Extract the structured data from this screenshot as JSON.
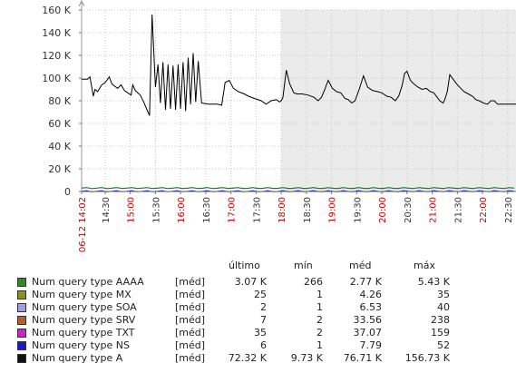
{
  "chart_data": {
    "type": "line",
    "ylim": [
      0,
      160000
    ],
    "y_ticks": [
      "0",
      "20 K",
      "40 K",
      "60 K",
      "80 K",
      "100 K",
      "120 K",
      "140 K",
      "160 K"
    ],
    "x_ticks": [
      {
        "label": "06-12 14:02",
        "red": true
      },
      {
        "label": "14:30",
        "red": false
      },
      {
        "label": "15:00",
        "red": true
      },
      {
        "label": "15:30",
        "red": false
      },
      {
        "label": "16:00",
        "red": true
      },
      {
        "label": "16:30",
        "red": false
      },
      {
        "label": "17:00",
        "red": true
      },
      {
        "label": "17:30",
        "red": false
      },
      {
        "label": "18:00",
        "red": true
      },
      {
        "label": "18:30",
        "red": false
      },
      {
        "label": "19:00",
        "red": true
      },
      {
        "label": "19:30",
        "red": false
      },
      {
        "label": "20:00",
        "red": true
      },
      {
        "label": "20:30",
        "red": false
      },
      {
        "label": "21:00",
        "red": true
      },
      {
        "label": "21:30",
        "red": false
      },
      {
        "label": "22:00",
        "red": true
      },
      {
        "label": "22:30",
        "red": false
      }
    ],
    "x_range_minutes": [
      0,
      519
    ],
    "shaded_from_minutes": 238,
    "grid": true,
    "series_main": {
      "name": "Num query type A",
      "color": "#000000",
      "points": [
        [
          0,
          99000
        ],
        [
          7,
          99000
        ],
        [
          10,
          101000
        ],
        [
          14,
          84000
        ],
        [
          16,
          90000
        ],
        [
          19,
          88000
        ],
        [
          24,
          94000
        ],
        [
          28,
          96000
        ],
        [
          33,
          101000
        ],
        [
          36,
          95000
        ],
        [
          39,
          93000
        ],
        [
          43,
          91000
        ],
        [
          47,
          94000
        ],
        [
          51,
          89000
        ],
        [
          55,
          87000
        ],
        [
          59,
          85000
        ],
        [
          61,
          94000
        ],
        [
          64,
          89000
        ],
        [
          70,
          85000
        ],
        [
          74,
          79000
        ],
        [
          78,
          72000
        ],
        [
          81,
          67000
        ],
        [
          84,
          156000
        ],
        [
          88,
          92000
        ],
        [
          91,
          112000
        ],
        [
          94,
          78000
        ],
        [
          97,
          114000
        ],
        [
          100,
          72000
        ],
        [
          103,
          112000
        ],
        [
          106,
          73000
        ],
        [
          109,
          111000
        ],
        [
          112,
          72000
        ],
        [
          115,
          112000
        ],
        [
          118,
          73000
        ],
        [
          121,
          114000
        ],
        [
          124,
          71000
        ],
        [
          127,
          118000
        ],
        [
          130,
          77000
        ],
        [
          133,
          122000
        ],
        [
          136,
          79000
        ],
        [
          139,
          115000
        ],
        [
          143,
          78000
        ],
        [
          151,
          77000
        ],
        [
          162,
          77000
        ],
        [
          167,
          76000
        ],
        [
          171,
          96000
        ],
        [
          176,
          98000
        ],
        [
          181,
          91000
        ],
        [
          187,
          88000
        ],
        [
          194,
          86000
        ],
        [
          199,
          84000
        ],
        [
          206,
          82000
        ],
        [
          214,
          80000
        ],
        [
          220,
          77000
        ],
        [
          226,
          80000
        ],
        [
          232,
          81000
        ],
        [
          236,
          79000
        ],
        [
          238,
          80000
        ],
        [
          240,
          83000
        ],
        [
          244,
          107000
        ],
        [
          248,
          95000
        ],
        [
          253,
          87000
        ],
        [
          257,
          86000
        ],
        [
          263,
          86000
        ],
        [
          270,
          85000
        ],
        [
          277,
          83000
        ],
        [
          282,
          80000
        ],
        [
          286,
          83000
        ],
        [
          290,
          90000
        ],
        [
          294,
          98000
        ],
        [
          299,
          91000
        ],
        [
          304,
          88000
        ],
        [
          309,
          87000
        ],
        [
          314,
          82000
        ],
        [
          318,
          81000
        ],
        [
          322,
          78000
        ],
        [
          326,
          80000
        ],
        [
          331,
          90000
        ],
        [
          336,
          102000
        ],
        [
          341,
          92000
        ],
        [
          347,
          89000
        ],
        [
          353,
          88000
        ],
        [
          358,
          87000
        ],
        [
          364,
          84000
        ],
        [
          369,
          83000
        ],
        [
          374,
          80000
        ],
        [
          378,
          84000
        ],
        [
          382,
          93000
        ],
        [
          385,
          104000
        ],
        [
          388,
          106000
        ],
        [
          392,
          98000
        ],
        [
          396,
          95000
        ],
        [
          401,
          92000
        ],
        [
          406,
          90000
        ],
        [
          411,
          91000
        ],
        [
          416,
          88000
        ],
        [
          420,
          87000
        ],
        [
          424,
          83000
        ],
        [
          427,
          80000
        ],
        [
          431,
          78000
        ],
        [
          433,
          81000
        ],
        [
          436,
          88000
        ],
        [
          439,
          103000
        ],
        [
          443,
          99000
        ],
        [
          447,
          95000
        ],
        [
          452,
          91000
        ],
        [
          456,
          88000
        ],
        [
          461,
          86000
        ],
        [
          466,
          84000
        ],
        [
          470,
          81000
        ],
        [
          474,
          80000
        ],
        [
          479,
          78000
        ],
        [
          484,
          77000
        ],
        [
          488,
          80000
        ],
        [
          492,
          80000
        ],
        [
          496,
          77000
        ],
        [
          505,
          77000
        ],
        [
          519,
          77000
        ]
      ]
    },
    "series_minor": [
      {
        "name": "Num query type AAAA",
        "color": "#1a7f1a",
        "value": 3000
      },
      {
        "name": "Num query type NS",
        "color": "#0000cc",
        "value": 200
      }
    ],
    "legend": {
      "header": {
        "last": "último",
        "min": "mín",
        "avg": "méd",
        "max": "máx"
      },
      "rows": [
        {
          "color": "#2e8b22",
          "name": "Num query type AAAA",
          "type": "[méd]",
          "last": "3.07 K",
          "min": "266",
          "avg": "2.77 K",
          "max": "5.43 K"
        },
        {
          "color": "#8f8f1e",
          "name": "Num query type MX",
          "type": "[méd]",
          "last": "25",
          "min": "1",
          "avg": "4.26",
          "max": "35"
        },
        {
          "color": "#9f9fe4",
          "name": "Num query type SOA",
          "type": "[méd]",
          "last": "2",
          "min": "1",
          "avg": "6.53",
          "max": "40"
        },
        {
          "color": "#b06028",
          "name": "Num query type SRV",
          "type": "[méd]",
          "last": "7",
          "min": "2",
          "avg": "33.56",
          "max": "238"
        },
        {
          "color": "#cc22cc",
          "name": "Num query type TXT",
          "type": "[méd]",
          "last": "35",
          "min": "2",
          "avg": "37.07",
          "max": "159"
        },
        {
          "color": "#1a1acc",
          "name": "Num query type NS",
          "type": "[méd]",
          "last": "6",
          "min": "1",
          "avg": "7.79",
          "max": "52"
        },
        {
          "color": "#111111",
          "name": "Num query type A",
          "type": "[méd]",
          "last": "72.32 K",
          "min": "9.73 K",
          "avg": "76.71 K",
          "max": "156.73 K"
        }
      ]
    }
  }
}
